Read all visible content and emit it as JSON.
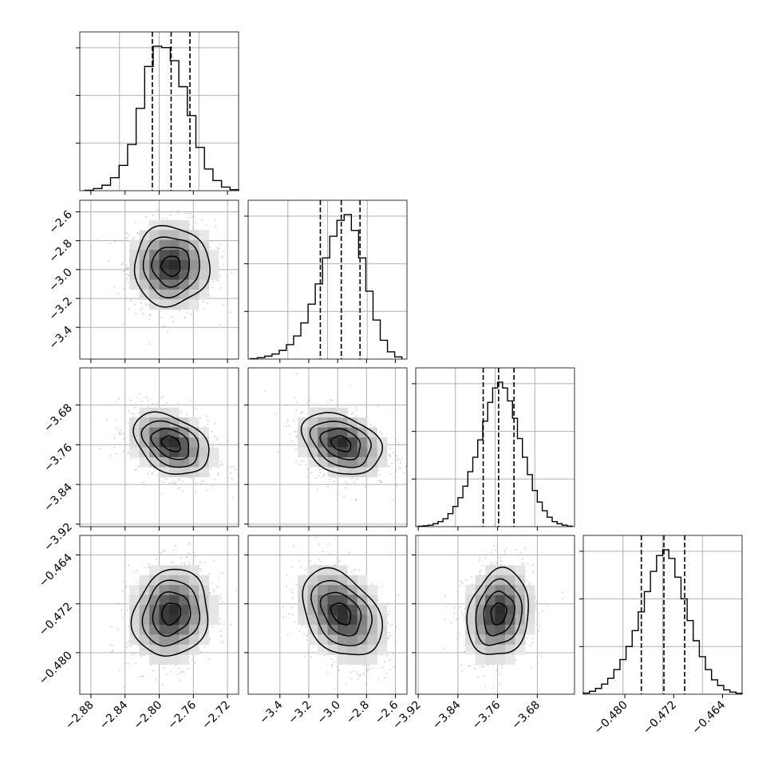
{
  "chart_data": {
    "type": "corner",
    "grid": true,
    "colors": {
      "hist_line": "#000000",
      "quantile_line": "#000000",
      "grid": "#b0b0b0",
      "scatter": "#bdbdbd",
      "density_dark": "#111111"
    },
    "parameters": [
      {
        "range": [
          -2.893,
          -2.707
        ],
        "ticks": [
          -2.88,
          -2.84,
          -2.8,
          -2.76,
          -2.72
        ],
        "tick_labels": [
          "−2.88",
          "−2.84",
          "−2.80",
          "−2.76",
          "−2.72"
        ],
        "quantiles": [
          -2.808,
          -2.786,
          -2.764
        ],
        "hist_centers": [
          -2.882,
          -2.872,
          -2.862,
          -2.852,
          -2.842,
          -2.832,
          -2.822,
          -2.812,
          -2.802,
          -2.792,
          -2.782,
          -2.772,
          -2.762,
          -2.752,
          -2.742,
          -2.732,
          -2.722,
          -2.712
        ],
        "hist_values": [
          0.3,
          1.5,
          3.8,
          9.0,
          17.5,
          32.0,
          57.0,
          86.0,
          100.0,
          99.0,
          90.0,
          72.0,
          52.0,
          30.0,
          15.0,
          7.0,
          2.5,
          0.7
        ]
      },
      {
        "range": [
          -3.62,
          -2.52
        ],
        "ticks": [
          -3.4,
          -3.2,
          -3.0,
          -2.8,
          -2.6
        ],
        "tick_labels": [
          "−3.4",
          "−3.2",
          "−3.0",
          "−2.8",
          "−2.6"
        ],
        "quantiles": [
          -3.12,
          -2.975,
          -2.845
        ],
        "hist_centers": [
          -3.58,
          -3.53,
          -3.48,
          -3.43,
          -3.38,
          -3.33,
          -3.28,
          -3.23,
          -3.18,
          -3.13,
          -3.08,
          -3.03,
          -2.98,
          -2.93,
          -2.88,
          -2.83,
          -2.78,
          -2.73,
          -2.68,
          -2.63,
          -2.58
        ],
        "hist_values": [
          0.3,
          1.0,
          2.0,
          3.5,
          6.0,
          10.0,
          16.0,
          25.0,
          38.0,
          52.0,
          70.0,
          85.0,
          96.0,
          100.0,
          89.0,
          70.0,
          47.0,
          27.0,
          13.0,
          5.0,
          1.5
        ]
      },
      {
        "range": [
          -3.925,
          -3.605
        ],
        "ticks": [
          -3.92,
          -3.84,
          -3.76,
          -3.68
        ],
        "tick_labels": [
          "−3.92",
          "−3.84",
          "−3.76",
          "−3.68"
        ],
        "quantiles": [
          -3.789,
          -3.758,
          -3.727
        ],
        "hist_centers": [
          -3.915,
          -3.905,
          -3.895,
          -3.885,
          -3.875,
          -3.865,
          -3.855,
          -3.845,
          -3.835,
          -3.825,
          -3.815,
          -3.805,
          -3.795,
          -3.785,
          -3.775,
          -3.765,
          -3.755,
          -3.745,
          -3.735,
          -3.725,
          -3.715,
          -3.705,
          -3.695,
          -3.685,
          -3.675,
          -3.665,
          -3.655,
          -3.645,
          -3.635,
          -3.625,
          -3.615
        ],
        "hist_values": [
          0.3,
          0.6,
          1.0,
          2.0,
          3.5,
          5.5,
          9.0,
          14.0,
          20.0,
          28.0,
          38.0,
          48.0,
          60.0,
          73.0,
          86.0,
          96.0,
          100.0,
          96.0,
          87.0,
          75.0,
          61.0,
          48.0,
          36.0,
          25.0,
          17.0,
          11.0,
          6.5,
          3.5,
          2.0,
          1.0,
          0.4
        ]
      },
      {
        "range": [
          -0.4868,
          -0.4608
        ],
        "ticks": [
          -0.48,
          -0.472,
          -0.464
        ],
        "tick_labels": [
          "−0.480",
          "−0.472",
          "−0.464"
        ],
        "quantiles": [
          -0.4773,
          -0.4736,
          -0.4702
        ],
        "hist_centers": [
          -0.4863,
          -0.4853,
          -0.4843,
          -0.4833,
          -0.4823,
          -0.4813,
          -0.4803,
          -0.4793,
          -0.4783,
          -0.4773,
          -0.4763,
          -0.4753,
          -0.4743,
          -0.4733,
          -0.4723,
          -0.4713,
          -0.4703,
          -0.4693,
          -0.4683,
          -0.4673,
          -0.4663,
          -0.4653,
          -0.4643,
          -0.4633,
          -0.4623,
          -0.4613
        ],
        "hist_values": [
          0.8,
          2.0,
          4.0,
          7.0,
          11.0,
          17.0,
          24.0,
          33.0,
          44.0,
          57.0,
          71.0,
          85.0,
          96.0,
          100.0,
          94.0,
          81.0,
          66.0,
          51.0,
          37.0,
          26.0,
          17.0,
          10.0,
          6.0,
          3.0,
          1.5,
          0.6
        ]
      }
    ],
    "correlations": [
      [
        1.0,
        0.0,
        -0.35,
        0.12
      ],
      [
        0.0,
        1.0,
        -0.3,
        -0.35
      ],
      [
        -0.35,
        -0.3,
        1.0,
        0.15
      ],
      [
        0.12,
        -0.35,
        0.15,
        1.0
      ]
    ]
  }
}
